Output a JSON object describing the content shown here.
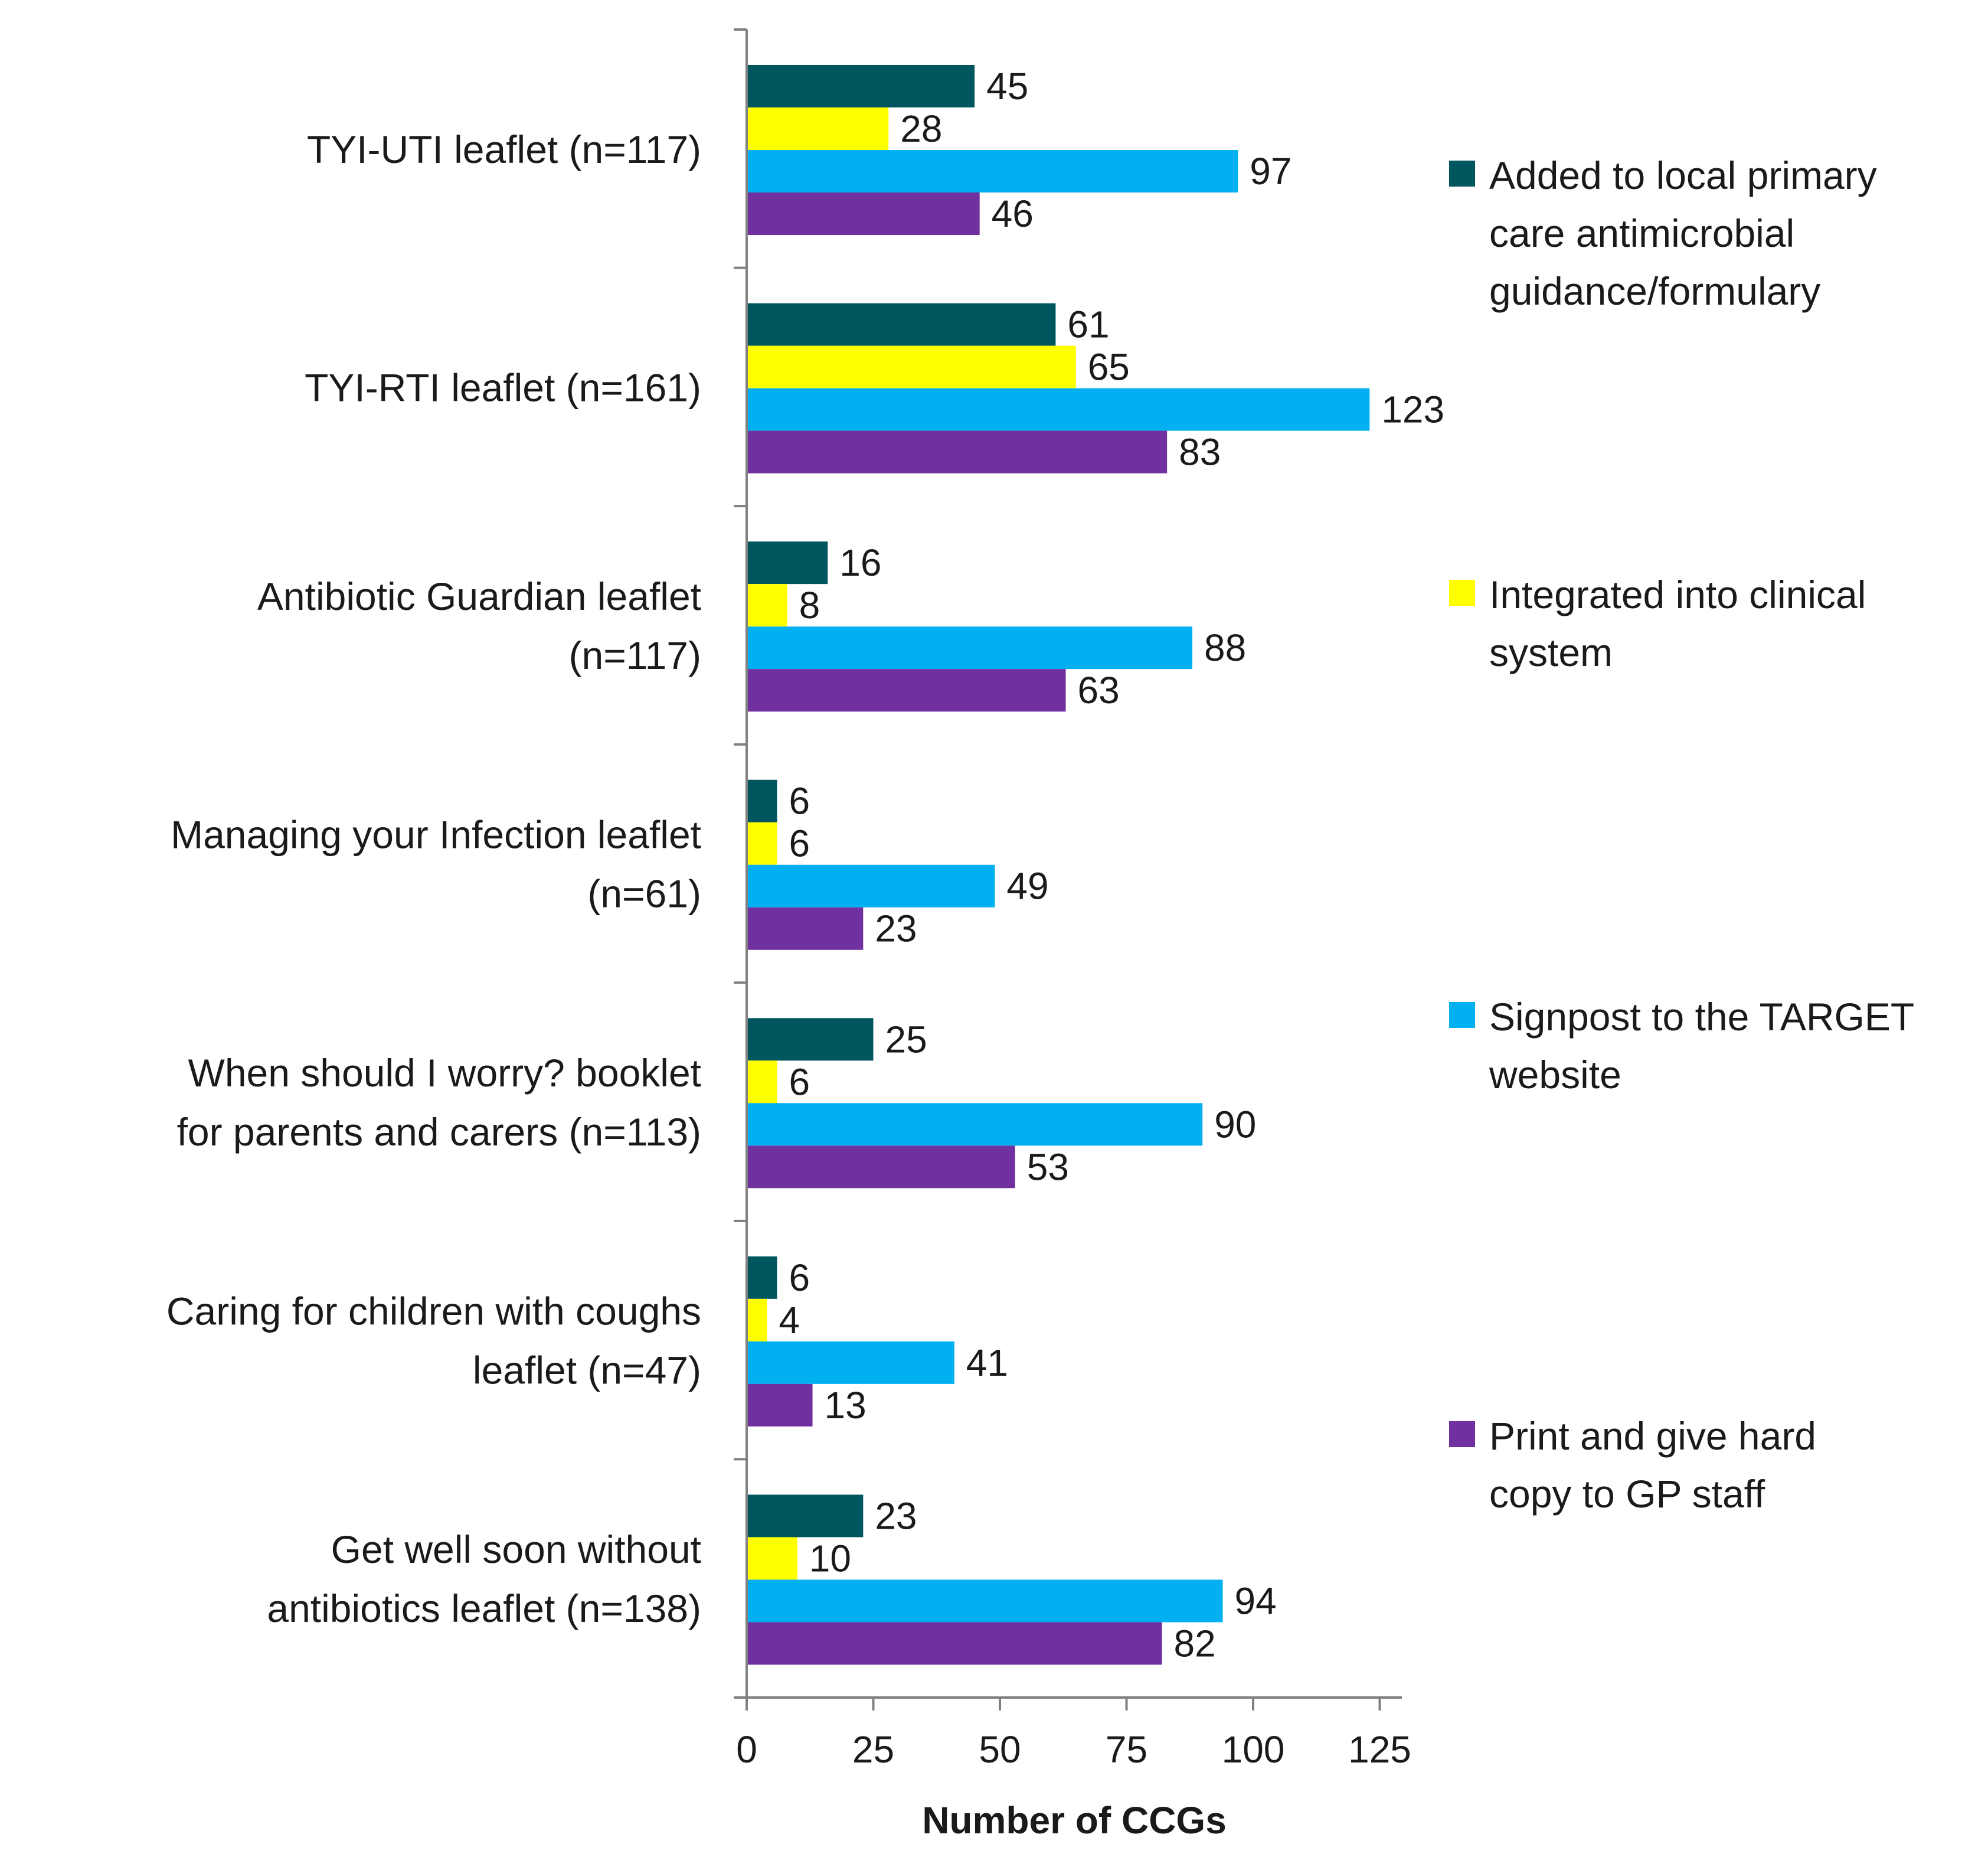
{
  "chart_data": {
    "type": "bar",
    "orientation": "horizontal",
    "categories": [
      [
        "TYI-UTI leaflet (n=117)"
      ],
      [
        "TYI-RTI leaflet (n=161)"
      ],
      [
        "Antibiotic Guardian leaflet",
        "(n=117)"
      ],
      [
        "Managing your Infection leaflet",
        "(n=61)"
      ],
      [
        "When should I worry? booklet",
        "for parents and carers (n=113)"
      ],
      [
        "Caring for children with coughs",
        "leaflet (n=47)"
      ],
      [
        "Get well soon without",
        "antibiotics leaflet (n=138)"
      ]
    ],
    "series": [
      {
        "name": [
          "Added to local primary",
          "care antimicrobial",
          "guidance/formulary"
        ],
        "color": "#00565f",
        "values": [
          45,
          61,
          16,
          6,
          25,
          6,
          23
        ]
      },
      {
        "name": [
          "Integrated into clinical",
          "system"
        ],
        "color": "#ffff00",
        "values": [
          28,
          65,
          8,
          6,
          6,
          4,
          10
        ]
      },
      {
        "name": [
          "Signpost to the TARGET",
          "website"
        ],
        "color": "#00b0f0",
        "values": [
          97,
          123,
          88,
          49,
          90,
          41,
          94
        ]
      },
      {
        "name": [
          "Print and give hard",
          "copy to GP staff"
        ],
        "color": "#7030a0",
        "values": [
          46,
          83,
          63,
          23,
          53,
          13,
          82
        ]
      }
    ],
    "xlabel": "Number of CCGs",
    "ylabel": "",
    "xticks": [
      0,
      25,
      50,
      75,
      100,
      125
    ],
    "xlim": [
      0,
      130
    ],
    "grid": false,
    "legend_position": "right"
  }
}
